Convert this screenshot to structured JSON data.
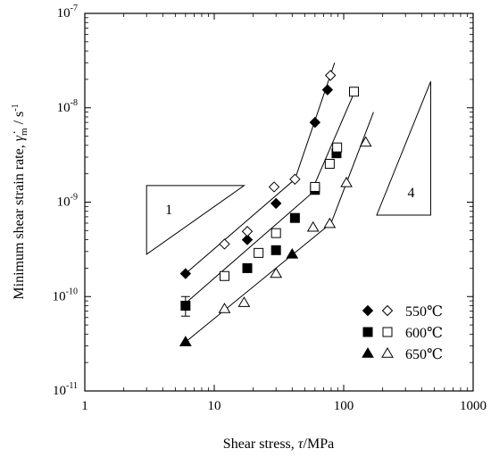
{
  "chart_data": {
    "type": "scatter",
    "xscale": "log",
    "yscale": "log",
    "xlim": [
      1,
      1000
    ],
    "ylim": [
      1e-11,
      1e-07
    ],
    "xlabel": "Shear stress, τ/MPa",
    "ylabel": "Minimum shear strain rate, γ̇m / s⁻¹",
    "x_tick_labels": [
      "1",
      "10",
      "100",
      "1000"
    ],
    "y_tick_labels": [
      {
        "base": "10",
        "exp": "-11"
      },
      {
        "base": "10",
        "exp": "-10"
      },
      {
        "base": "10",
        "exp": "-9"
      },
      {
        "base": "10",
        "exp": "-8"
      },
      {
        "base": "10",
        "exp": "-7"
      }
    ],
    "grid": false,
    "legend_position": "bottom-right",
    "series": [
      {
        "name": "550℃",
        "temperature_label": "550℃",
        "marker": "diamond",
        "filled": true,
        "x": [
          6,
          18,
          30,
          60,
          75
        ],
        "y": [
          1.75e-10,
          4e-10,
          9.7e-10,
          7e-09,
          1.55e-08
        ]
      },
      {
        "name": "550℃",
        "marker": "diamond",
        "filled": false,
        "x": [
          12,
          18,
          29,
          42,
          79
        ],
        "y": [
          3.6e-10,
          4.9e-10,
          1.45e-09,
          1.75e-09,
          2.2e-08
        ]
      },
      {
        "name": "600℃",
        "temperature_label": "600℃",
        "marker": "square",
        "filled": true,
        "x": [
          6,
          18,
          30,
          42,
          60,
          88
        ],
        "y": [
          8e-11,
          2e-10,
          3.1e-10,
          6.8e-10,
          1.35e-09,
          3.3e-09
        ]
      },
      {
        "name": "600℃",
        "marker": "square",
        "filled": false,
        "x": [
          12,
          22,
          30,
          60,
          78,
          89,
          120
        ],
        "y": [
          1.65e-10,
          2.9e-10,
          4.7e-10,
          1.45e-09,
          2.55e-09,
          3.8e-09,
          1.48e-08
        ]
      },
      {
        "name": "650℃",
        "temperature_label": "650℃",
        "marker": "triangle",
        "filled": true,
        "x": [
          6,
          40
        ],
        "y": [
          3.3e-11,
          2.8e-10
        ]
      },
      {
        "name": "650℃",
        "marker": "triangle",
        "filled": false,
        "x": [
          12,
          17,
          30,
          58,
          78,
          105,
          148
        ],
        "y": [
          7.4e-11,
          8.6e-11,
          1.75e-10,
          5.4e-10,
          5.9e-10,
          1.6e-09,
          4.3e-09
        ]
      }
    ],
    "error_bars": [
      {
        "x": 6,
        "y_low": 6.2e-11,
        "y_high": 1e-10
      }
    ],
    "fit_lines": [
      {
        "series": "550℃",
        "points": [
          [
            6,
            1.75e-10
          ],
          [
            42,
            1.75e-09
          ],
          [
            85,
            3e-08
          ]
        ]
      },
      {
        "series": "600℃",
        "points": [
          [
            6,
            8.5e-11
          ],
          [
            55,
            1.2e-09
          ],
          [
            122,
            1.5e-08
          ]
        ]
      },
      {
        "series": "650℃",
        "points": [
          [
            6,
            3.3e-11
          ],
          [
            80,
            6e-10
          ],
          [
            170,
            9e-09
          ]
        ]
      }
    ],
    "slope_triangles": [
      {
        "label": "1",
        "x": [
          3,
          17
        ],
        "y": [
          2.8e-10,
          1.5e-09
        ]
      },
      {
        "label": "4",
        "x": [
          180,
          470
        ],
        "y": [
          1.9e-08,
          7.3e-10
        ]
      }
    ]
  }
}
